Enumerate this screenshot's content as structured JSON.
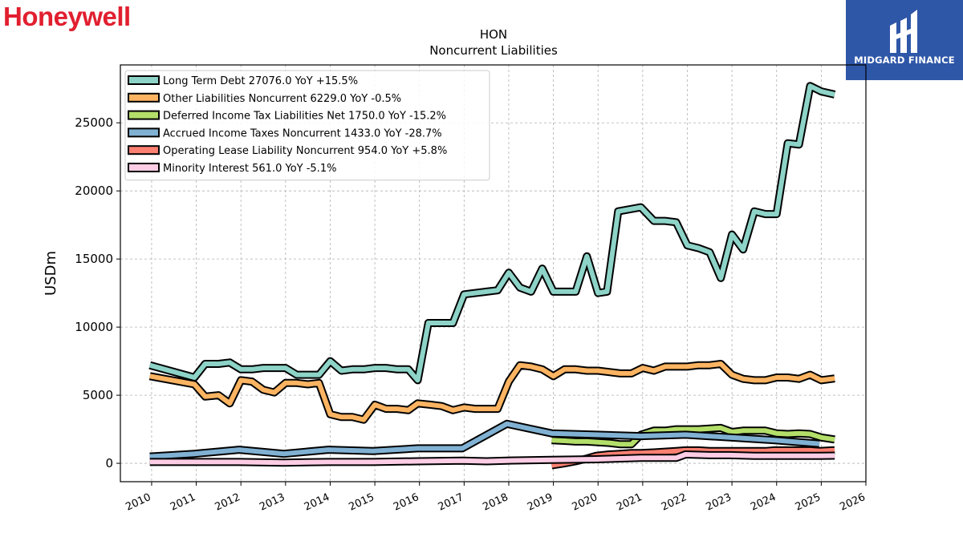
{
  "branding": {
    "left_logo_text": "Honeywell",
    "right_logo_text": "MIDGARD FINANCE",
    "left_logo_color": "#e11f2f",
    "right_logo_bg": "#2f57a8"
  },
  "chart_data": {
    "type": "line",
    "title": "HON",
    "subtitle": "Noncurrent  Liabilities",
    "ylabel": "USDm",
    "xlabel": "",
    "xlim": [
      2009.3,
      2026
    ],
    "ylim": [
      -1350,
      29250
    ],
    "yticks": [
      0,
      5000,
      10000,
      15000,
      20000,
      25000
    ],
    "xticks": [
      2010,
      2011,
      2012,
      2013,
      2014,
      2015,
      2016,
      2017,
      2018,
      2019,
      2020,
      2021,
      2022,
      2023,
      2024,
      2025,
      2026
    ],
    "grid": true,
    "legend_position": "top-left",
    "series": [
      {
        "name": "Long Term Debt",
        "legend_label": "Long Term Debt  27076.0 YoY +15.5%",
        "color": "#8dd3c7",
        "points": [
          [
            2009.96,
            7200
          ],
          [
            2010.96,
            6300
          ],
          [
            2011.2,
            7300
          ],
          [
            2011.5,
            7300
          ],
          [
            2011.75,
            7400
          ],
          [
            2012.0,
            6900
          ],
          [
            2012.25,
            6900
          ],
          [
            2012.5,
            7000
          ],
          [
            2012.75,
            7000
          ],
          [
            2013.0,
            7000
          ],
          [
            2013.25,
            6500
          ],
          [
            2013.5,
            6500
          ],
          [
            2013.75,
            6500
          ],
          [
            2014.0,
            7500
          ],
          [
            2014.25,
            6800
          ],
          [
            2014.5,
            6900
          ],
          [
            2014.75,
            6900
          ],
          [
            2015.0,
            7000
          ],
          [
            2015.25,
            7000
          ],
          [
            2015.5,
            6900
          ],
          [
            2015.75,
            6900
          ],
          [
            2015.96,
            6100
          ],
          [
            2016.2,
            10300
          ],
          [
            2016.5,
            10300
          ],
          [
            2016.75,
            10300
          ],
          [
            2017.0,
            12400
          ],
          [
            2017.5,
            12600
          ],
          [
            2017.75,
            12700
          ],
          [
            2018.0,
            14000
          ],
          [
            2018.25,
            12900
          ],
          [
            2018.5,
            12600
          ],
          [
            2018.75,
            14300
          ],
          [
            2019.0,
            12600
          ],
          [
            2019.25,
            12600
          ],
          [
            2019.5,
            12600
          ],
          [
            2019.75,
            15200
          ],
          [
            2020.0,
            12500
          ],
          [
            2020.2,
            12600
          ],
          [
            2020.45,
            18500
          ],
          [
            2020.96,
            18800
          ],
          [
            2021.25,
            17800
          ],
          [
            2021.5,
            17800
          ],
          [
            2021.75,
            17700
          ],
          [
            2022.0,
            16000
          ],
          [
            2022.25,
            15800
          ],
          [
            2022.5,
            15500
          ],
          [
            2022.75,
            13600
          ],
          [
            2023.0,
            16800
          ],
          [
            2023.25,
            15700
          ],
          [
            2023.5,
            18500
          ],
          [
            2023.75,
            18300
          ],
          [
            2024.0,
            18300
          ],
          [
            2024.25,
            23500
          ],
          [
            2024.5,
            23400
          ],
          [
            2024.75,
            27700
          ],
          [
            2025.0,
            27300
          ],
          [
            2025.3,
            27076
          ]
        ]
      },
      {
        "name": "Other Liabilities Noncurrent",
        "legend_label": "Other Liabilities Noncurrent  6229.0 YoY -0.5%",
        "color": "#fdb462",
        "points": [
          [
            2009.96,
            6400
          ],
          [
            2010.96,
            5800
          ],
          [
            2011.2,
            4900
          ],
          [
            2011.5,
            5000
          ],
          [
            2011.75,
            4400
          ],
          [
            2012.0,
            6100
          ],
          [
            2012.25,
            6000
          ],
          [
            2012.5,
            5400
          ],
          [
            2012.75,
            5200
          ],
          [
            2013.0,
            5900
          ],
          [
            2013.25,
            5900
          ],
          [
            2013.5,
            5800
          ],
          [
            2013.75,
            5900
          ],
          [
            2014.0,
            3600
          ],
          [
            2014.25,
            3400
          ],
          [
            2014.5,
            3400
          ],
          [
            2014.75,
            3200
          ],
          [
            2015.0,
            4300
          ],
          [
            2015.25,
            4000
          ],
          [
            2015.5,
            4000
          ],
          [
            2015.75,
            3900
          ],
          [
            2015.96,
            4400
          ],
          [
            2016.25,
            4300
          ],
          [
            2016.5,
            4200
          ],
          [
            2016.75,
            3900
          ],
          [
            2017.0,
            4100
          ],
          [
            2017.25,
            4000
          ],
          [
            2017.5,
            4000
          ],
          [
            2017.75,
            4000
          ],
          [
            2018.0,
            6000
          ],
          [
            2018.25,
            7200
          ],
          [
            2018.5,
            7100
          ],
          [
            2018.75,
            6900
          ],
          [
            2019.0,
            6400
          ],
          [
            2019.25,
            6900
          ],
          [
            2019.5,
            6900
          ],
          [
            2019.75,
            6800
          ],
          [
            2020.0,
            6800
          ],
          [
            2020.25,
            6700
          ],
          [
            2020.5,
            6600
          ],
          [
            2020.75,
            6600
          ],
          [
            2021.0,
            7000
          ],
          [
            2021.25,
            6800
          ],
          [
            2021.5,
            7100
          ],
          [
            2021.75,
            7100
          ],
          [
            2022.0,
            7100
          ],
          [
            2022.25,
            7200
          ],
          [
            2022.5,
            7200
          ],
          [
            2022.75,
            7300
          ],
          [
            2023.0,
            6500
          ],
          [
            2023.25,
            6200
          ],
          [
            2023.5,
            6100
          ],
          [
            2023.75,
            6100
          ],
          [
            2024.0,
            6300
          ],
          [
            2024.25,
            6300
          ],
          [
            2024.5,
            6200
          ],
          [
            2024.75,
            6500
          ],
          [
            2025.0,
            6100
          ],
          [
            2025.3,
            6229
          ]
        ]
      },
      {
        "name": "Deferred Income Tax Liabilities Net",
        "legend_label": "Deferred Income Tax Liabilities Net  1750.0 YoY -15.2%",
        "color": "#b3de69",
        "points": [
          [
            2018.96,
            1700
          ],
          [
            2019.25,
            1650
          ],
          [
            2019.5,
            1600
          ],
          [
            2019.75,
            1600
          ],
          [
            2020.0,
            1550
          ],
          [
            2020.25,
            1500
          ],
          [
            2020.5,
            1400
          ],
          [
            2020.75,
            1400
          ],
          [
            2020.96,
            2100
          ],
          [
            2021.25,
            2400
          ],
          [
            2021.5,
            2400
          ],
          [
            2021.75,
            2500
          ],
          [
            2022.0,
            2500
          ],
          [
            2022.25,
            2500
          ],
          [
            2022.5,
            2550
          ],
          [
            2022.75,
            2600
          ],
          [
            2023.0,
            2300
          ],
          [
            2023.25,
            2400
          ],
          [
            2023.5,
            2400
          ],
          [
            2023.75,
            2400
          ],
          [
            2024.0,
            2200
          ],
          [
            2024.25,
            2150
          ],
          [
            2024.5,
            2200
          ],
          [
            2024.75,
            2150
          ],
          [
            2025.0,
            1900
          ],
          [
            2025.3,
            1750
          ]
        ]
      },
      {
        "name": "Accrued Income Taxes Noncurrent",
        "legend_label": "Accrued Income Taxes Noncurrent  1433.0 YoY -28.7%",
        "color": "#80b1d3",
        "points": [
          [
            2009.96,
            500
          ],
          [
            2010.96,
            700
          ],
          [
            2011.96,
            1000
          ],
          [
            2012.96,
            700
          ],
          [
            2013.96,
            1000
          ],
          [
            2014.96,
            900
          ],
          [
            2015.96,
            1100
          ],
          [
            2016.96,
            1100
          ],
          [
            2017.96,
            2900
          ],
          [
            2018.96,
            2200
          ],
          [
            2019.96,
            2100
          ],
          [
            2020.96,
            2000
          ],
          [
            2021.96,
            2100
          ],
          [
            2022.96,
            1900
          ],
          [
            2023.96,
            1700
          ],
          [
            2024.96,
            1433
          ]
        ]
      },
      {
        "name": "Operating Lease Liability Noncurrent",
        "legend_label": "Operating Lease Liability Noncurrent  954.0 YoY +5.8%",
        "color": "#fb8072",
        "points": [
          [
            2018.96,
            -150
          ],
          [
            2019.25,
            0
          ],
          [
            2019.5,
            150
          ],
          [
            2019.75,
            350
          ],
          [
            2019.96,
            550
          ],
          [
            2020.25,
            650
          ],
          [
            2020.5,
            700
          ],
          [
            2020.75,
            750
          ],
          [
            2020.96,
            750
          ],
          [
            2021.25,
            800
          ],
          [
            2021.5,
            850
          ],
          [
            2021.75,
            900
          ],
          [
            2021.96,
            950
          ],
          [
            2022.25,
            950
          ],
          [
            2022.5,
            900
          ],
          [
            2022.75,
            900
          ],
          [
            2022.96,
            900
          ],
          [
            2023.25,
            900
          ],
          [
            2023.5,
            900
          ],
          [
            2023.75,
            900
          ],
          [
            2023.96,
            950
          ],
          [
            2024.25,
            950
          ],
          [
            2024.5,
            950
          ],
          [
            2024.75,
            950
          ],
          [
            2024.96,
            900
          ],
          [
            2025.3,
            954
          ]
        ]
      },
      {
        "name": "Minority Interest",
        "legend_label": "Minority Interest  561.0 YoY -5.1%",
        "color": "#fccde5",
        "points": [
          [
            2009.96,
            100
          ],
          [
            2010.96,
            100
          ],
          [
            2011.96,
            100
          ],
          [
            2012.96,
            50
          ],
          [
            2013.96,
            100
          ],
          [
            2014.96,
            100
          ],
          [
            2015.96,
            150
          ],
          [
            2016.96,
            200
          ],
          [
            2017.5,
            150
          ],
          [
            2017.96,
            200
          ],
          [
            2018.96,
            250
          ],
          [
            2019.96,
            300
          ],
          [
            2020.96,
            400
          ],
          [
            2021.75,
            400
          ],
          [
            2021.96,
            650
          ],
          [
            2022.5,
            600
          ],
          [
            2022.96,
            600
          ],
          [
            2023.5,
            550
          ],
          [
            2023.96,
            550
          ],
          [
            2024.5,
            550
          ],
          [
            2024.96,
            550
          ],
          [
            2025.3,
            561
          ]
        ]
      }
    ]
  }
}
